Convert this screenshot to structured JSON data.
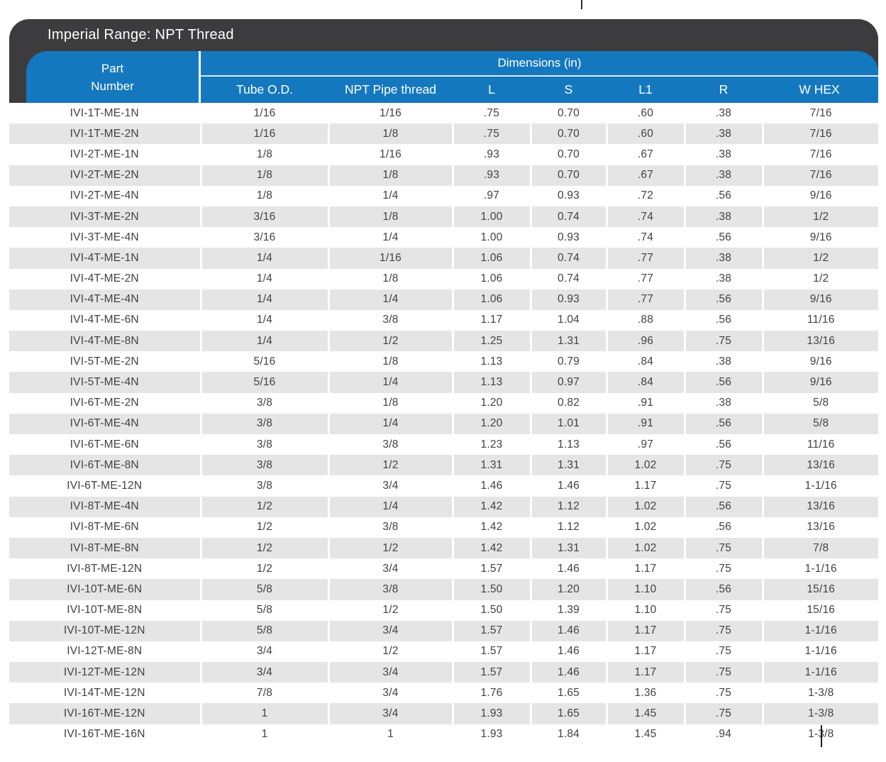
{
  "theme": {
    "title_bar_bg": "#3C3C3E",
    "header_blue": "#1478BE",
    "stripe_gray": "#E5E5E5",
    "body_text": "#414141",
    "header_text": "#FFFFFF"
  },
  "table": {
    "title": "Imperial Range: NPT Thread",
    "part_header_line1": "Part",
    "part_header_line2": "Number",
    "dimensions_header": "Dimensions (in)",
    "columns": [
      "Tube O.D.",
      "NPT Pipe thread",
      "L",
      "S",
      "L1",
      "R",
      "W HEX"
    ],
    "rows": [
      [
        "IVI-1T-ME-1N",
        "1/16",
        "1/16",
        ".75",
        "0.70",
        ".60",
        ".38",
        "7/16"
      ],
      [
        "IVI-1T-ME-2N",
        "1/16",
        "1/8",
        ".75",
        "0.70",
        ".60",
        ".38",
        "7/16"
      ],
      [
        "IVI-2T-ME-1N",
        "1/8",
        "1/16",
        ".93",
        "0.70",
        ".67",
        ".38",
        "7/16"
      ],
      [
        "IVI-2T-ME-2N",
        "1/8",
        "1/8",
        ".93",
        "0.70",
        ".67",
        ".38",
        "7/16"
      ],
      [
        "IVI-2T-ME-4N",
        "1/8",
        "1/4",
        ".97",
        "0.93",
        ".72",
        ".56",
        "9/16"
      ],
      [
        "IVI-3T-ME-2N",
        "3/16",
        "1/8",
        "1.00",
        "0.74",
        ".74",
        ".38",
        "1/2"
      ],
      [
        "IVI-3T-ME-4N",
        "3/16",
        "1/4",
        "1.00",
        "0.93",
        ".74",
        ".56",
        "9/16"
      ],
      [
        "IVI-4T-ME-1N",
        "1/4",
        "1/16",
        "1.06",
        "0.74",
        ".77",
        ".38",
        "1/2"
      ],
      [
        "IVI-4T-ME-2N",
        "1/4",
        "1/8",
        "1.06",
        "0.74",
        ".77",
        ".38",
        "1/2"
      ],
      [
        "IVI-4T-ME-4N",
        "1/4",
        "1/4",
        "1.06",
        "0.93",
        ".77",
        ".56",
        "9/16"
      ],
      [
        "IVI-4T-ME-6N",
        "1/4",
        "3/8",
        "1.17",
        "1.04",
        ".88",
        ".56",
        "11/16"
      ],
      [
        "IVI-4T-ME-8N",
        "1/4",
        "1/2",
        "1.25",
        "1.31",
        ".96",
        ".75",
        "13/16"
      ],
      [
        "IVI-5T-ME-2N",
        "5/16",
        "1/8",
        "1.13",
        "0.79",
        ".84",
        ".38",
        "9/16"
      ],
      [
        "IVI-5T-ME-4N",
        "5/16",
        "1/4",
        "1.13",
        "0.97",
        ".84",
        ".56",
        "9/16"
      ],
      [
        "IVI-6T-ME-2N",
        "3/8",
        "1/8",
        "1.20",
        "0.82",
        ".91",
        ".38",
        "5/8"
      ],
      [
        "IVI-6T-ME-4N",
        "3/8",
        "1/4",
        "1.20",
        "1.01",
        ".91",
        ".56",
        "5/8"
      ],
      [
        "IVI-6T-ME-6N",
        "3/8",
        "3/8",
        "1.23",
        "1.13",
        ".97",
        ".56",
        "11/16"
      ],
      [
        "IVI-6T-ME-8N",
        "3/8",
        "1/2",
        "1.31",
        "1.31",
        "1.02",
        ".75",
        "13/16"
      ],
      [
        "IVI-6T-ME-12N",
        "3/8",
        "3/4",
        "1.46",
        "1.46",
        "1.17",
        ".75",
        "1-1/16"
      ],
      [
        "IVI-8T-ME-4N",
        "1/2",
        "1/4",
        "1.42",
        "1.12",
        "1.02",
        ".56",
        "13/16"
      ],
      [
        "IVI-8T-ME-6N",
        "1/2",
        "3/8",
        "1.42",
        "1.12",
        "1.02",
        ".56",
        "13/16"
      ],
      [
        "IVI-8T-ME-8N",
        "1/2",
        "1/2",
        "1.42",
        "1.31",
        "1.02",
        ".75",
        "7/8"
      ],
      [
        "IVI-8T-ME-12N",
        "1/2",
        "3/4",
        "1.57",
        "1.46",
        "1.17",
        ".75",
        "1-1/16"
      ],
      [
        "IVI-10T-ME-6N",
        "5/8",
        "3/8",
        "1.50",
        "1.20",
        "1.10",
        ".56",
        "15/16"
      ],
      [
        "IVI-10T-ME-8N",
        "5/8",
        "1/2",
        "1.50",
        "1.39",
        "1.10",
        ".75",
        "15/16"
      ],
      [
        "IVI-10T-ME-12N",
        "5/8",
        "3/4",
        "1.57",
        "1.46",
        "1.17",
        ".75",
        "1-1/16"
      ],
      [
        "IVI-12T-ME-8N",
        "3/4",
        "1/2",
        "1.57",
        "1.46",
        "1.17",
        ".75",
        "1-1/16"
      ],
      [
        "IVI-12T-ME-12N",
        "3/4",
        "3/4",
        "1.57",
        "1.46",
        "1.17",
        ".75",
        "1-1/16"
      ],
      [
        "IVI-14T-ME-12N",
        "7/8",
        "3/4",
        "1.76",
        "1.65",
        "1.36",
        ".75",
        "1-3/8"
      ],
      [
        "IVI-16T-ME-12N",
        "1",
        "3/4",
        "1.93",
        "1.65",
        "1.45",
        ".75",
        "1-3/8"
      ],
      [
        "IVI-16T-ME-16N",
        "1",
        "1",
        "1.93",
        "1.84",
        "1.45",
        ".94",
        "1-3/8"
      ]
    ]
  }
}
